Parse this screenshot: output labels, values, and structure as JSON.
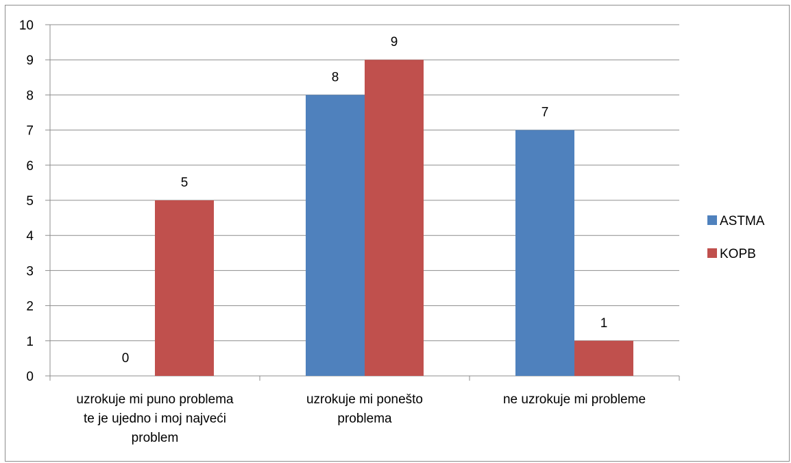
{
  "chart_data": {
    "type": "bar",
    "categories": [
      [
        "uzrokuje mi puno problema",
        "te je ujedno i moj najveći",
        "problem"
      ],
      [
        "uzrokuje mi ponešto",
        "problema"
      ],
      [
        "ne uzrokuje mi probleme"
      ]
    ],
    "series": [
      {
        "name": "ASTMA",
        "values": [
          0,
          8,
          7
        ],
        "color": "#4f81bd"
      },
      {
        "name": "KOPB",
        "values": [
          5,
          9,
          1
        ],
        "color": "#c0504d"
      }
    ],
    "ylim": [
      0,
      10
    ],
    "yticks": [
      0,
      1,
      2,
      3,
      4,
      5,
      6,
      7,
      8,
      9,
      10
    ],
    "grid": true,
    "legend": "right",
    "gridColor": "#8c8c8c"
  }
}
